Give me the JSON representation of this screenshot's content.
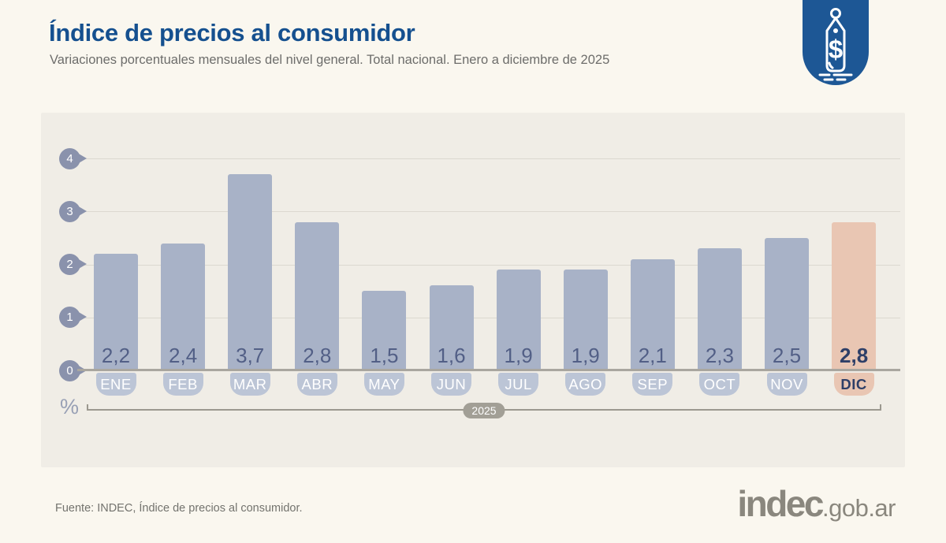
{
  "header": {
    "title": "Índice de precios al consumidor",
    "subtitle": "Variaciones porcentuales mensuales del nivel general. Total nacional. Enero a diciembre de 2025"
  },
  "chart_data": {
    "type": "bar",
    "title": "Índice de precios al consumidor",
    "subtitle": "Variaciones porcentuales mensuales del nivel general. Total nacional. Enero a diciembre de 2025",
    "categories": [
      "ENE",
      "FEB",
      "MAR",
      "ABR",
      "MAY",
      "JUN",
      "JUL",
      "AGO",
      "SEP",
      "OCT",
      "NOV",
      "DIC"
    ],
    "values": [
      2.2,
      2.4,
      3.7,
      2.8,
      1.5,
      1.6,
      1.9,
      1.9,
      2.1,
      2.3,
      2.5,
      2.8
    ],
    "value_labels": [
      "2,2",
      "2,4",
      "3,7",
      "2,8",
      "1,5",
      "1,6",
      "1,9",
      "1,9",
      "2,1",
      "2,3",
      "2,5",
      "2,8"
    ],
    "highlight_index": 11,
    "y_ticks": [
      0,
      1,
      2,
      3,
      4
    ],
    "ylim": [
      0,
      4
    ],
    "ylabel": "%",
    "period_label": "2025",
    "grid": true,
    "legend": "none",
    "colors": {
      "bar": "#a8b2c7",
      "bar_highlight": "#e9c6b3",
      "month_tab": "#bcc5d6",
      "month_tab_highlight": "#e9c6b3",
      "value_text": "#525f86",
      "value_text_highlight": "#2e3f68",
      "month_text": "#ffffff",
      "month_text_highlight": "#2e3f68",
      "tick_marker": "#8a92ac",
      "accent_blue": "#1d5795",
      "title_blue": "#15508f"
    }
  },
  "footer": {
    "source": "Fuente: INDEC, Índice de precios al consumidor.",
    "logo_main": "indec",
    "logo_suffix": ".gob.ar"
  }
}
